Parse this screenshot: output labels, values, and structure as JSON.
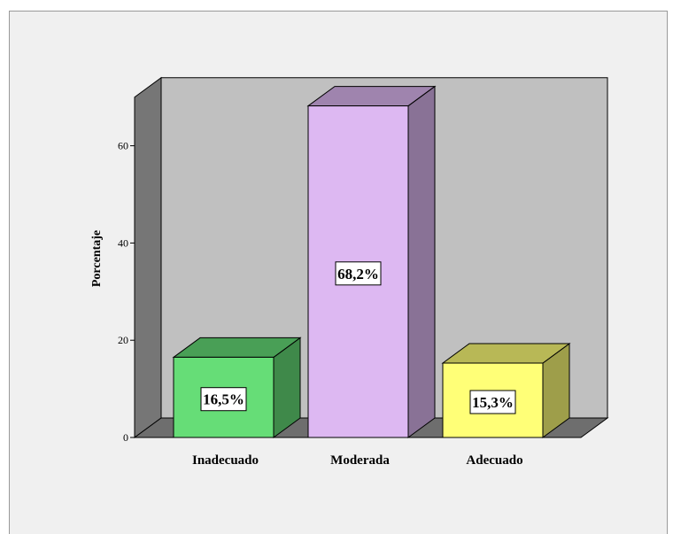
{
  "chart_data": {
    "type": "bar",
    "style": "3d",
    "ylabel": "Porcentaje",
    "xlabel": "",
    "ylim": [
      0,
      70
    ],
    "yticks": [
      0,
      20,
      40,
      60
    ],
    "categories": [
      "Inadecuado",
      "Moderada",
      "Adecuado"
    ],
    "values": [
      16.5,
      68.2,
      15.3
    ],
    "data_labels": [
      "16,5%",
      "68,2%",
      "15,3%"
    ],
    "colors": [
      "#66dd77",
      "#ddb8f2",
      "#ffff77"
    ],
    "wall_color": "#c0c0c0",
    "grid": false
  }
}
